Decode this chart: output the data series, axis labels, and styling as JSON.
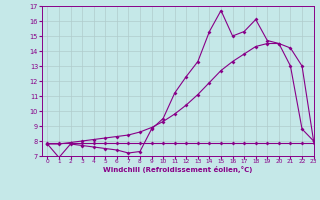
{
  "xlabel": "Windchill (Refroidissement éolien,°C)",
  "background_color": "#c5e8e8",
  "line_color": "#880088",
  "grid_color": "#b0cccc",
  "x": [
    0,
    1,
    2,
    3,
    4,
    5,
    6,
    7,
    8,
    9,
    10,
    11,
    12,
    13,
    14,
    15,
    16,
    17,
    18,
    19,
    20,
    21,
    22,
    23
  ],
  "y_main": [
    7.8,
    6.9,
    7.8,
    7.7,
    7.6,
    7.5,
    7.4,
    7.2,
    7.3,
    8.8,
    9.5,
    11.2,
    12.3,
    13.3,
    15.3,
    16.7,
    15.0,
    15.3,
    16.1,
    14.7,
    14.5,
    13.0,
    8.8,
    8.0
  ],
  "y_trend": [
    7.8,
    7.8,
    7.9,
    8.0,
    8.1,
    8.2,
    8.3,
    8.4,
    8.6,
    8.9,
    9.3,
    9.8,
    10.4,
    11.1,
    11.9,
    12.7,
    13.3,
    13.8,
    14.3,
    14.5,
    14.5,
    14.2,
    13.0,
    8.0
  ],
  "y_flat": [
    7.9,
    7.9,
    7.9,
    7.9,
    7.9,
    7.9,
    7.9,
    7.9,
    7.9,
    7.9,
    7.9,
    7.9,
    7.9,
    7.9,
    7.9,
    7.9,
    7.9,
    7.9,
    7.9,
    7.9,
    7.9,
    7.9,
    7.9,
    7.9
  ],
  "ylim": [
    7,
    17
  ],
  "xlim": [
    -0.5,
    23
  ],
  "yticks": [
    7,
    8,
    9,
    10,
    11,
    12,
    13,
    14,
    15,
    16,
    17
  ],
  "xticks": [
    0,
    1,
    2,
    3,
    4,
    5,
    6,
    7,
    8,
    9,
    10,
    11,
    12,
    13,
    14,
    15,
    16,
    17,
    18,
    19,
    20,
    21,
    22,
    23
  ]
}
